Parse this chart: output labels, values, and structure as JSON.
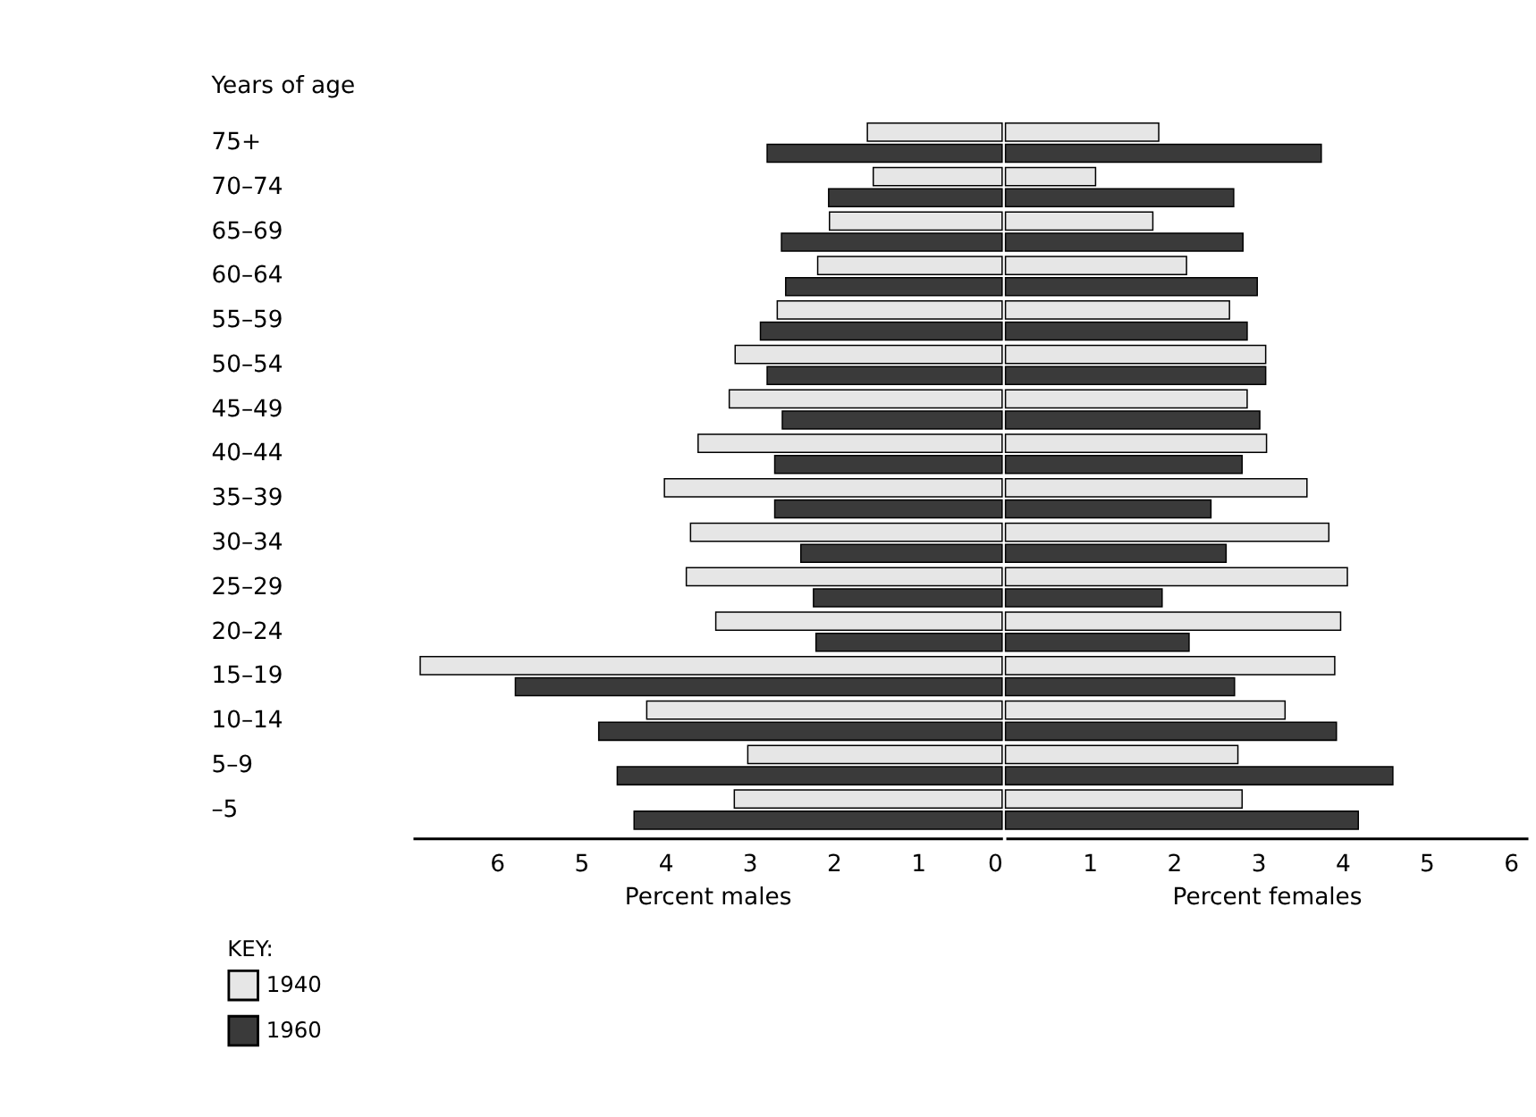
{
  "chart_data": [
    {
      "type": "bar",
      "orientation": "horizontal",
      "ylabel": "Years of age",
      "xlabel": "Percent males",
      "legend_title": "KEY:",
      "legend": "bottom left",
      "grid": false,
      "categories": [
        "75+",
        "70–74",
        "65–69",
        "60–64",
        "55–59",
        "50–54",
        "45–49",
        "40–44",
        "35–39",
        "30–34",
        "25–29",
        "20–24",
        "15–19",
        "10–14",
        "5–9",
        "–5"
      ],
      "series": [
        {
          "name": "1940",
          "color": "#e6e6e6",
          "values": [
            1.6,
            1.53,
            2.05,
            2.19,
            2.67,
            3.17,
            3.24,
            3.61,
            4.01,
            3.7,
            3.75,
            3.4,
            6.91,
            4.22,
            3.02,
            3.18
          ]
        },
        {
          "name": "1960",
          "color": "#3a3a3a",
          "values": [
            2.79,
            2.06,
            2.62,
            2.57,
            2.87,
            2.79,
            2.61,
            2.7,
            2.7,
            2.39,
            2.24,
            2.21,
            5.78,
            4.79,
            4.57,
            4.37
          ]
        }
      ],
      "xlim": [
        7,
        0
      ],
      "xticks": [
        6,
        5,
        4,
        3,
        2,
        1,
        0
      ]
    },
    {
      "type": "bar",
      "orientation": "horizontal",
      "xlabel": "Percent females",
      "grid": false,
      "tick_labels": "x",
      "categories": [
        null,
        null,
        null,
        null,
        null,
        null,
        null,
        null,
        null,
        null,
        null,
        null,
        null,
        null,
        null,
        null
      ],
      "series": [
        {
          "name": "1940",
          "color": "#e6e6e6",
          "values": [
            1.82,
            1.07,
            1.75,
            2.15,
            2.66,
            3.09,
            2.87,
            3.1,
            3.58,
            3.84,
            4.06,
            3.98,
            3.91,
            3.32,
            2.76,
            2.81
          ]
        },
        {
          "name": "1960",
          "color": "#3a3a3a",
          "values": [
            3.75,
            2.71,
            2.82,
            2.99,
            2.87,
            3.09,
            3.02,
            2.81,
            2.44,
            2.62,
            1.86,
            2.18,
            2.72,
            3.93,
            4.6,
            4.19
          ]
        }
      ],
      "xlim": [
        0,
        6.2
      ],
      "xticks": [
        1,
        2,
        3,
        4,
        5,
        6
      ]
    }
  ]
}
